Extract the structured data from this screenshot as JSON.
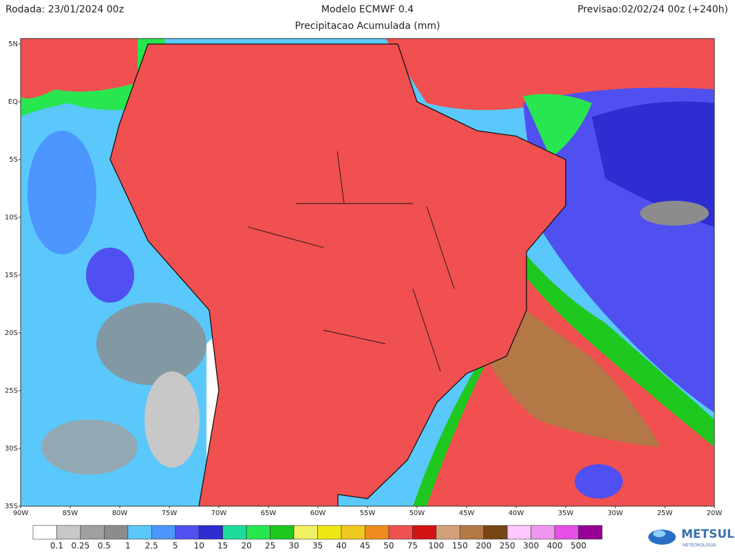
{
  "header": {
    "run": "Rodada: 23/01/2024 00z",
    "model": "Modelo ECMWF 0.4",
    "product": "Precipitacao Acumulada (mm)",
    "forecast": "Previsao:02/02/24 00z (+240h)"
  },
  "map": {
    "lat_labels": [
      "5N",
      "EQ",
      "5S",
      "10S",
      "15S",
      "20S",
      "25S",
      "30S",
      "35S"
    ],
    "lon_labels": [
      "90W",
      "85W",
      "80W",
      "75W",
      "70W",
      "65W",
      "60W",
      "55W",
      "50W",
      "45W",
      "40W",
      "35W",
      "30W",
      "25W",
      "20W"
    ]
  },
  "legend": {
    "labels": [
      "0.1",
      "0.25",
      "0.5",
      "1",
      "2.5",
      "5",
      "10",
      "15",
      "20",
      "25",
      "30",
      "35",
      "40",
      "45",
      "50",
      "75",
      "100",
      "150",
      "200",
      "250",
      "300",
      "400",
      "500"
    ],
    "colors": [
      "#ffffff",
      "#c8c8c8",
      "#a0a0a0",
      "#8c8c8c",
      "#5ac8fa",
      "#4b96ff",
      "#5050f0",
      "#2d2dd2",
      "#1edc9b",
      "#28e650",
      "#1ec81e",
      "#f0f064",
      "#f0e614",
      "#f0c81e",
      "#f08c1e",
      "#f05050",
      "#d21414",
      "#d2a07a",
      "#b47846",
      "#784614",
      "#ffc8ff",
      "#f096f0",
      "#e650e6",
      "#960096"
    ]
  },
  "logo": {
    "name": "METSUL",
    "tagline": "METEOROLOGIA"
  }
}
